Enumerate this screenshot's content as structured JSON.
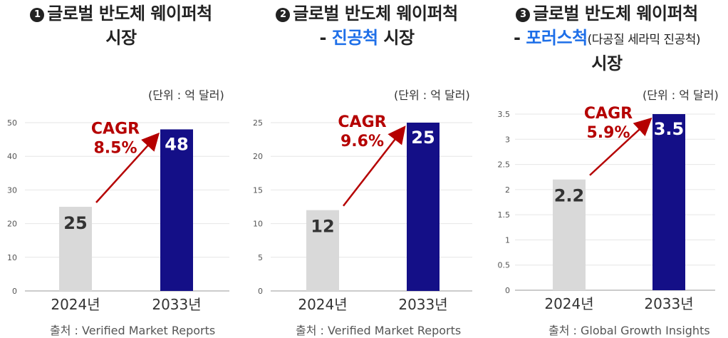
{
  "colors": {
    "bar_2024": "#d9d9d9",
    "bar_2033": "#140f87",
    "cagr": "#b50000",
    "highlight": "#1e6fe8",
    "value_2024": "#333333",
    "value_2033": "#ffffff"
  },
  "panels": [
    {
      "title_line1": "글로벌 반도체 웨이퍼척",
      "title_line2_prefix": "",
      "title_line2_highlight": "",
      "title_line2_paren": "",
      "title_line2_suffix": "시장",
      "title_line3": "",
      "badge": "1",
      "unit": "(단위 : 억 달러)",
      "source": "출처 : Verified Market Reports",
      "cagr_label": "CAGR",
      "cagr_value": "8.5%"
    },
    {
      "title_line1": "글로벌 반도체 웨이퍼척",
      "title_line2_prefix": "- ",
      "title_line2_highlight": "진공척",
      "title_line2_paren": "",
      "title_line2_suffix": " 시장",
      "title_line3": "",
      "badge": "2",
      "unit": "(단위 : 억 달러)",
      "source": "출처 : Verified Market Reports",
      "cagr_label": "CAGR",
      "cagr_value": "9.6%"
    },
    {
      "title_line1": "글로벌 반도체 웨이퍼척",
      "title_line2_prefix": "- ",
      "title_line2_highlight": "포러스척",
      "title_line2_paren": "(다공질 세라믹 진공척)",
      "title_line2_suffix": "",
      "title_line3": "시장",
      "badge": "3",
      "unit": "(단위 : 억 달러)",
      "source": "출처 : Global Growth Insights",
      "cagr_label": "CAGR",
      "cagr_value": "5.9%"
    }
  ],
  "chart_data": [
    {
      "type": "bar",
      "categories": [
        "2024년",
        "2033년"
      ],
      "values": [
        25,
        48
      ],
      "value_labels": [
        "25",
        "48"
      ],
      "ylim": [
        0,
        50
      ],
      "yticks": [
        0,
        10,
        20,
        30,
        40,
        50
      ],
      "ytick_labels": [
        "0",
        "10",
        "20",
        "30",
        "40",
        "50"
      ]
    },
    {
      "type": "bar",
      "categories": [
        "2024년",
        "2033년"
      ],
      "values": [
        12,
        25
      ],
      "value_labels": [
        "12",
        "25"
      ],
      "ylim": [
        0,
        25
      ],
      "yticks": [
        0,
        5,
        10,
        15,
        20,
        25
      ],
      "ytick_labels": [
        "0",
        "5",
        "10",
        "15",
        "20",
        "25"
      ]
    },
    {
      "type": "bar",
      "categories": [
        "2024년",
        "2033년"
      ],
      "values": [
        2.2,
        3.5
      ],
      "value_labels": [
        "2.2",
        "3.5"
      ],
      "ylim": [
        0,
        3.5
      ],
      "yticks": [
        0,
        0.5,
        1,
        1.5,
        2,
        2.5,
        3,
        3.5
      ],
      "ytick_labels": [
        "0",
        "0.5",
        "1",
        "1.5",
        "2",
        "2.5",
        "3",
        "3.5"
      ]
    }
  ]
}
